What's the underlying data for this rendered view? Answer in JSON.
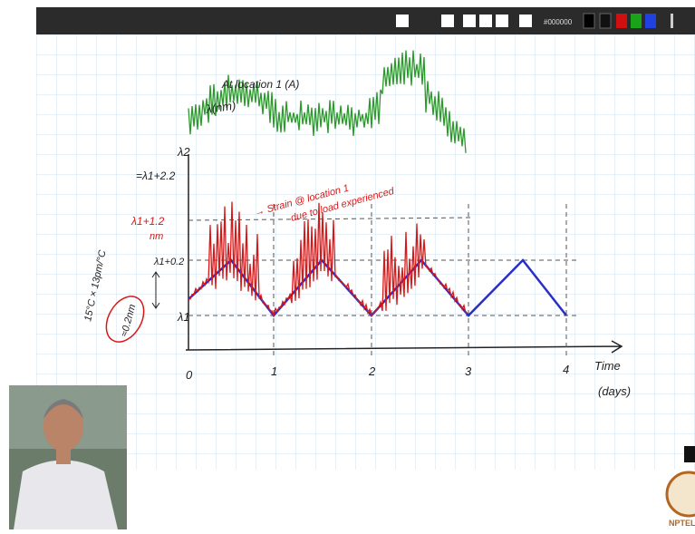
{
  "toolbar": {
    "color_code": "#000000"
  },
  "sketch": {
    "title": "At location 1 (A)",
    "y_axis_label": "λ(nm)",
    "levels": [
      "λ2",
      "=λ1+2.2",
      "λ1+1.2",
      "nm",
      "λ1+0.2",
      "λ1"
    ],
    "sensitivity": "15°C × 13pm/°C",
    "shift": "≈0.2nm",
    "annotation": [
      "→ Strain @ location 1",
      "due to load experienced"
    ],
    "x_ticks": [
      "0",
      "1",
      "2",
      "3",
      "4"
    ],
    "x_axis_label": [
      "Time",
      "(days)"
    ]
  },
  "logo": "NPTEL"
}
